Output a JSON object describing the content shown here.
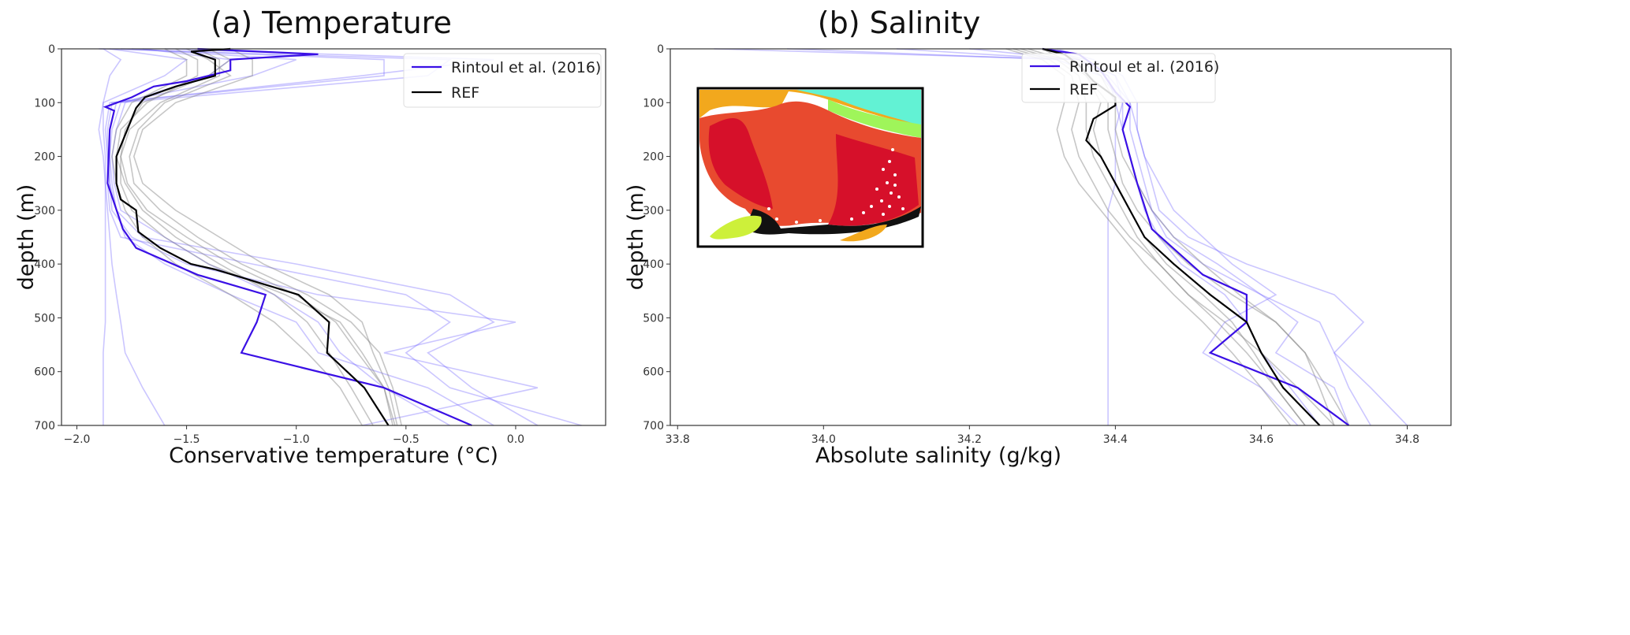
{
  "chart_data": [
    {
      "type": "line",
      "title": "(a) Temperature",
      "xlabel": "Conservative temperature (°C)",
      "ylabel": "depth (m)",
      "xlim": [
        -2.07,
        0.41
      ],
      "ylim": [
        700,
        0
      ],
      "xticks": [
        -2.0,
        -1.5,
        -1.0,
        -0.5,
        0.0
      ],
      "xtick_labels": [
        "−2.0",
        "−1.5",
        "−1.0",
        "−0.5",
        "0.0"
      ],
      "yticks": [
        0,
        100,
        200,
        300,
        400,
        500,
        600,
        700
      ],
      "ytick_labels": [
        "0",
        "100",
        "200",
        "300",
        "400",
        "500",
        "600",
        "700"
      ],
      "legend_position": "top-right",
      "grid": false,
      "series": [
        {
          "name": "Rintoul et al. (2016)",
          "color": "#3a10e5",
          "depth": [
            0,
            10,
            20,
            40,
            60,
            70,
            90,
            108,
            115,
            150,
            250,
            335,
            370,
            420,
            457,
            508,
            565,
            630,
            700
          ],
          "values": [
            -1.45,
            -0.9,
            -1.3,
            -1.3,
            -1.5,
            -1.65,
            -1.75,
            -1.87,
            -1.83,
            -1.85,
            -1.86,
            -1.79,
            -1.73,
            -1.45,
            -1.14,
            -1.18,
            -1.25,
            -0.6,
            -0.2
          ]
        },
        {
          "name": "REF",
          "color": "#000000",
          "depth": [
            0,
            5,
            20,
            50,
            70,
            90,
            110,
            150,
            200,
            250,
            280,
            300,
            340,
            370,
            400,
            410,
            457,
            508,
            565,
            630,
            700
          ],
          "values": [
            -1.3,
            -1.48,
            -1.37,
            -1.37,
            -1.55,
            -1.69,
            -1.73,
            -1.77,
            -1.82,
            -1.82,
            -1.8,
            -1.73,
            -1.72,
            -1.62,
            -1.48,
            -1.37,
            -0.99,
            -0.85,
            -0.86,
            -0.69,
            -0.58
          ]
        }
      ],
      "ensemble": {
        "depth": [
          0,
          20,
          50,
          100,
          150,
          200,
          250,
          300,
          350,
          400,
          457,
          508,
          565,
          630,
          700
        ],
        "model_color": "#808080",
        "obs_color": "#6a5cff",
        "model_profiles": [
          [
            -1.4,
            -1.3,
            -1.4,
            -1.7,
            -1.78,
            -1.8,
            -1.8,
            -1.75,
            -1.6,
            -1.4,
            -1.05,
            -0.8,
            -0.7,
            -0.6,
            -0.55
          ],
          [
            -1.5,
            -1.4,
            -1.3,
            -1.6,
            -1.72,
            -1.76,
            -1.74,
            -1.62,
            -1.45,
            -1.25,
            -0.95,
            -0.75,
            -0.62,
            -0.56,
            -0.52
          ],
          [
            -1.6,
            -1.5,
            -1.5,
            -1.75,
            -1.82,
            -1.84,
            -1.82,
            -1.78,
            -1.7,
            -1.55,
            -1.3,
            -1.1,
            -0.95,
            -0.8,
            -0.7
          ],
          [
            -1.3,
            -1.2,
            -1.2,
            -1.55,
            -1.7,
            -1.74,
            -1.7,
            -1.55,
            -1.35,
            -1.15,
            -0.85,
            -0.7,
            -0.65,
            -0.58,
            -0.54
          ],
          [
            -1.55,
            -1.45,
            -1.45,
            -1.68,
            -1.8,
            -1.82,
            -1.78,
            -1.7,
            -1.55,
            -1.35,
            -1.1,
            -0.95,
            -0.85,
            -0.75,
            -0.65
          ],
          [
            -1.45,
            -1.35,
            -1.35,
            -1.62,
            -1.76,
            -1.8,
            -1.77,
            -1.68,
            -1.5,
            -1.3,
            -1.0,
            -0.82,
            -0.72,
            -0.6,
            -0.56
          ]
        ],
        "obs_profiles": [
          [
            -1.8,
            -0.6,
            -0.6,
            -1.85,
            -1.87,
            -1.86,
            -1.86,
            -1.85,
            -1.8,
            -1.2,
            -0.5,
            -0.3,
            -0.5,
            -0.3,
            0.3
          ],
          [
            -1.75,
            -1.0,
            -1.2,
            -1.82,
            -1.85,
            -1.85,
            -1.84,
            -1.82,
            -1.78,
            -1.6,
            -1.3,
            -1.0,
            -0.9,
            -0.4,
            -0.1
          ],
          [
            -1.85,
            -1.5,
            -1.6,
            -1.88,
            -1.9,
            -1.88,
            -1.87,
            -1.86,
            -1.85,
            -1.84,
            -1.82,
            -1.8,
            -1.78,
            -1.7,
            -1.6
          ],
          [
            -1.9,
            -0.3,
            -0.4,
            -1.8,
            -1.84,
            -1.85,
            -1.85,
            -1.82,
            -1.7,
            -1.0,
            -0.3,
            -0.1,
            -0.4,
            -0.2,
            0.1
          ],
          [
            -1.7,
            -1.3,
            -1.4,
            -1.78,
            -1.82,
            -1.84,
            -1.83,
            -1.8,
            -1.6,
            -1.4,
            -1.1,
            -0.9,
            -0.8,
            -0.6,
            -0.3
          ],
          [
            -1.88,
            -1.8,
            -1.85,
            -1.88,
            -1.88,
            -1.87,
            -1.87,
            -1.87,
            -1.87,
            -1.87,
            -1.87,
            -1.87,
            -1.88,
            -1.88,
            -1.88
          ],
          [
            -1.6,
            -0.1,
            -0.7,
            -1.84,
            -1.86,
            -1.86,
            -1.85,
            -1.84,
            -1.75,
            -1.5,
            -0.9,
            0.0,
            -0.6,
            0.1,
            -0.7
          ]
        ]
      }
    },
    {
      "type": "line",
      "title": "(b) Salinity",
      "xlabel": "Absolute salinity (g/kg)",
      "ylabel": "depth (m)",
      "xlim": [
        33.79,
        34.86
      ],
      "ylim": [
        700,
        0
      ],
      "xticks": [
        33.8,
        34.0,
        34.2,
        34.4,
        34.6,
        34.8
      ],
      "xtick_labels": [
        "33.8",
        "34.0",
        "34.2",
        "34.4",
        "34.6",
        "34.8"
      ],
      "yticks": [
        0,
        100,
        200,
        300,
        400,
        500,
        600,
        700
      ],
      "ytick_labels": [
        "0",
        "100",
        "200",
        "300",
        "400",
        "500",
        "600",
        "700"
      ],
      "legend_position": "top-right",
      "grid": false,
      "inset": "map of sampling locations",
      "series": [
        {
          "name": "Rintoul et al. (2016)",
          "color": "#3a10e5",
          "depth": [
            0,
            10,
            40,
            80,
            108,
            150,
            250,
            335,
            420,
            457,
            508,
            565,
            630,
            700
          ],
          "values": [
            34.3,
            34.35,
            34.38,
            34.4,
            34.42,
            34.41,
            34.43,
            34.45,
            34.52,
            34.58,
            34.58,
            34.53,
            34.65,
            34.72
          ]
        },
        {
          "name": "REF",
          "color": "#000000",
          "depth": [
            0,
            10,
            30,
            60,
            90,
            105,
            130,
            170,
            200,
            250,
            300,
            350,
            400,
            457,
            508,
            565,
            630,
            700
          ],
          "values": [
            34.3,
            34.33,
            34.35,
            34.37,
            34.4,
            34.4,
            34.37,
            34.36,
            34.38,
            34.4,
            34.42,
            34.44,
            34.48,
            34.53,
            34.58,
            34.6,
            34.63,
            34.68
          ]
        }
      ],
      "ensemble": {
        "depth": [
          0,
          20,
          50,
          100,
          150,
          200,
          250,
          300,
          350,
          400,
          457,
          508,
          565,
          630,
          700
        ],
        "model_color": "#808080",
        "obs_color": "#6a5cff",
        "model_profiles": [
          [
            34.28,
            34.33,
            34.36,
            34.38,
            34.37,
            34.38,
            34.4,
            34.42,
            34.44,
            34.47,
            34.52,
            34.56,
            34.59,
            34.62,
            34.66
          ],
          [
            34.26,
            34.31,
            34.34,
            34.35,
            34.34,
            34.35,
            34.37,
            34.39,
            34.42,
            34.46,
            34.5,
            34.55,
            34.6,
            34.65,
            34.7
          ],
          [
            34.3,
            34.35,
            34.38,
            34.4,
            34.4,
            34.41,
            34.43,
            34.45,
            34.48,
            34.52,
            34.57,
            34.62,
            34.66,
            34.69,
            34.72
          ],
          [
            34.25,
            34.3,
            34.33,
            34.33,
            34.32,
            34.33,
            34.35,
            34.38,
            34.41,
            34.44,
            34.48,
            34.52,
            34.56,
            34.6,
            34.64
          ],
          [
            34.3,
            34.33,
            34.36,
            34.39,
            34.39,
            34.4,
            34.41,
            34.43,
            34.46,
            34.5,
            34.56,
            34.62,
            34.66,
            34.68,
            34.7
          ],
          [
            34.27,
            34.32,
            34.35,
            34.36,
            34.36,
            34.37,
            34.39,
            34.41,
            34.43,
            34.46,
            34.5,
            34.54,
            34.58,
            34.62,
            34.66
          ]
        ],
        "obs_profiles": [
          [
            33.85,
            34.35,
            34.4,
            34.42,
            34.42,
            34.43,
            34.44,
            34.45,
            34.47,
            34.52,
            34.6,
            34.68,
            34.7,
            34.72,
            34.75
          ],
          [
            33.95,
            34.32,
            34.38,
            34.41,
            34.41,
            34.42,
            34.43,
            34.44,
            34.46,
            34.49,
            34.55,
            34.58,
            34.6,
            34.64,
            34.68
          ],
          [
            34.1,
            34.34,
            34.39,
            34.42,
            34.43,
            34.44,
            34.45,
            34.46,
            34.5,
            34.58,
            34.7,
            34.74,
            34.7,
            34.75,
            34.8
          ],
          [
            34.3,
            34.36,
            34.4,
            34.41,
            34.4,
            34.4,
            34.4,
            34.39,
            34.39,
            34.39,
            34.39,
            34.39,
            34.39,
            34.39,
            34.39
          ],
          [
            34.32,
            34.37,
            34.41,
            34.43,
            34.43,
            34.44,
            34.46,
            34.48,
            34.52,
            34.56,
            34.62,
            34.55,
            34.52,
            34.6,
            34.65
          ],
          [
            34.2,
            34.35,
            34.39,
            34.4,
            34.41,
            34.42,
            34.43,
            34.45,
            34.48,
            34.54,
            34.6,
            34.65,
            34.62,
            34.7,
            34.72
          ]
        ]
      }
    }
  ]
}
